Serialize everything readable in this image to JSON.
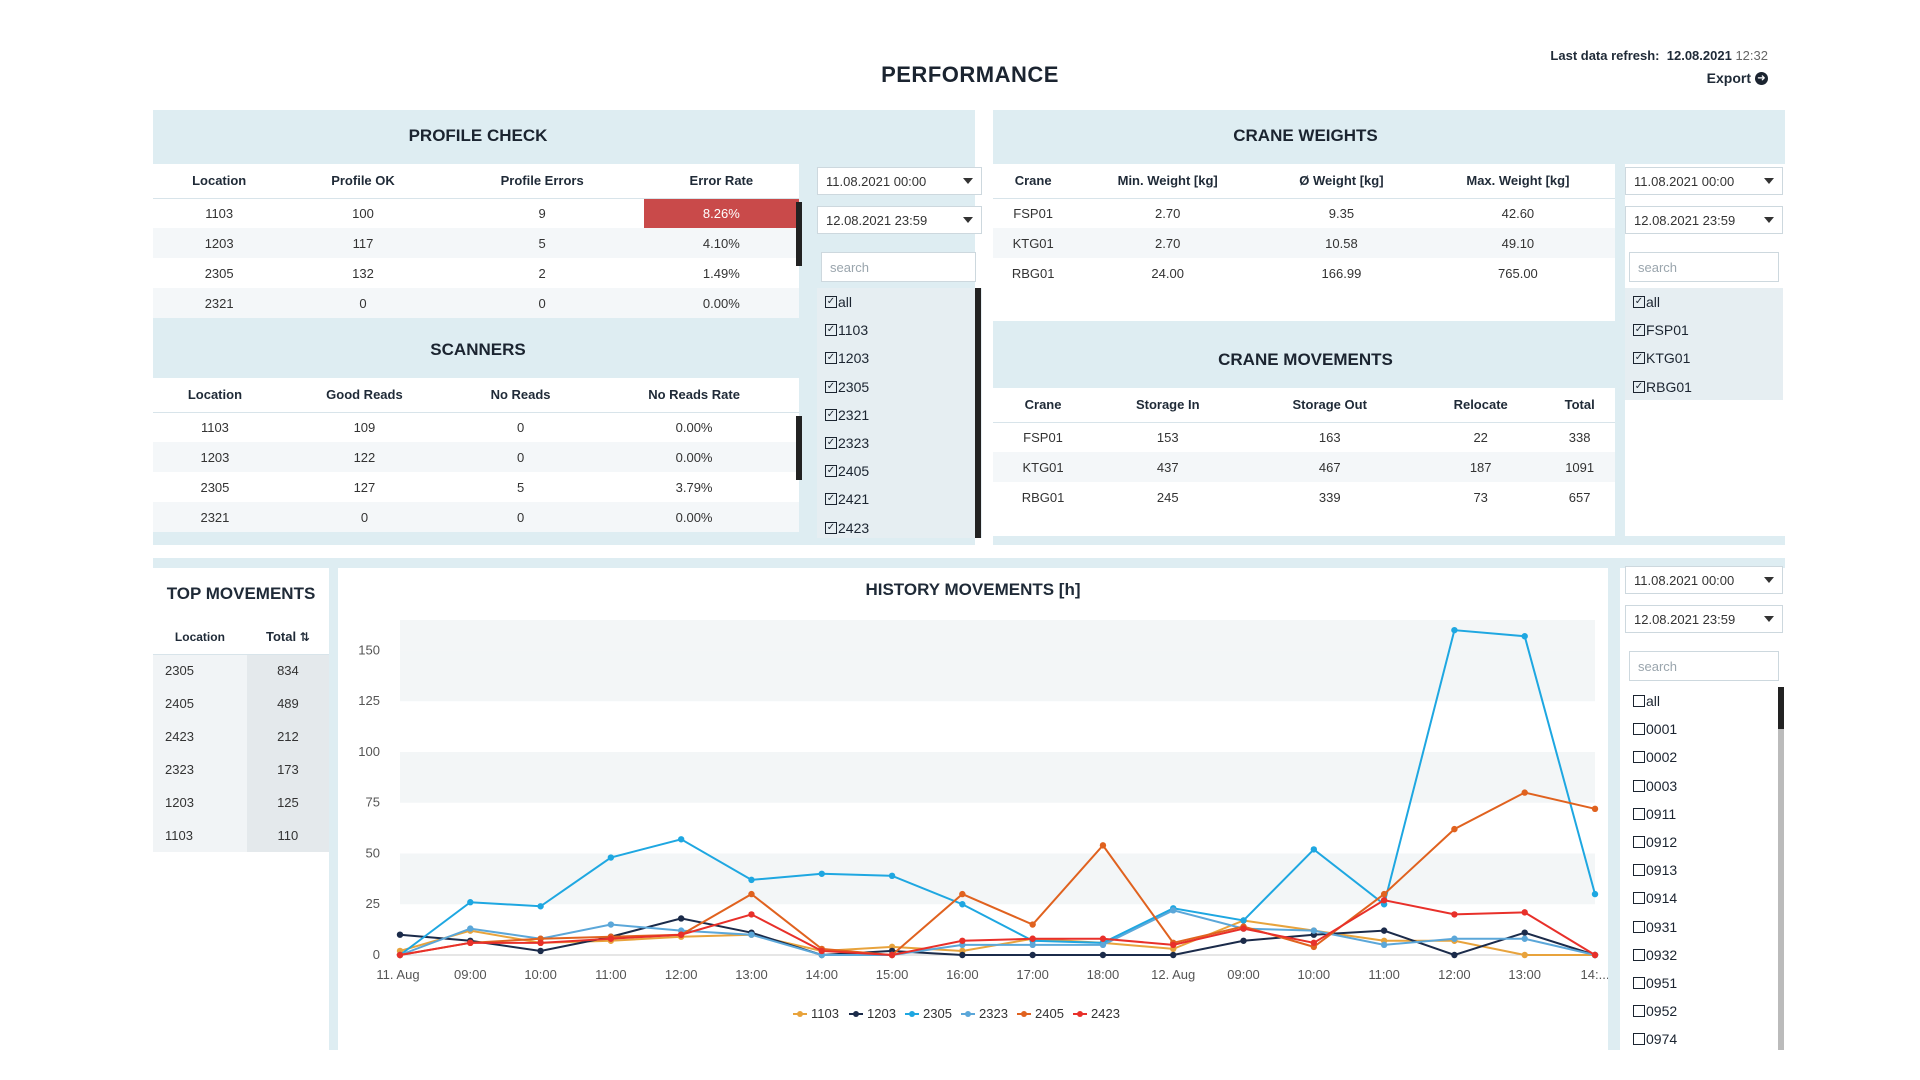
{
  "page": {
    "title": "PERFORMANCE",
    "refresh_label": "Last data refresh:",
    "refresh_date": "12.08.2021",
    "refresh_time": "12:32",
    "export_label": "Export"
  },
  "profile_check": {
    "title": "PROFILE CHECK",
    "headers": [
      "Location",
      "Profile OK",
      "Profile Errors",
      "Error Rate"
    ],
    "rows": [
      [
        "1103",
        "100",
        "9",
        "8.26%"
      ],
      [
        "1203",
        "117",
        "5",
        "4.10%"
      ],
      [
        "2305",
        "132",
        "2",
        "1.49%"
      ],
      [
        "2321",
        "0",
        "0",
        "0.00%"
      ]
    ]
  },
  "scanners": {
    "title": "SCANNERS",
    "headers": [
      "Location",
      "Good Reads",
      "No Reads",
      "No Reads Rate"
    ],
    "rows": [
      [
        "1103",
        "109",
        "0",
        "0.00%"
      ],
      [
        "1203",
        "122",
        "0",
        "0.00%"
      ],
      [
        "2305",
        "127",
        "5",
        "3.79%"
      ],
      [
        "2321",
        "0",
        "0",
        "0.00%"
      ]
    ]
  },
  "filter_left": {
    "date_from": "11.08.2021 00:00",
    "date_to": "12.08.2021 23:59",
    "search_placeholder": "search",
    "items": [
      "all",
      "1103",
      "1203",
      "2305",
      "2321",
      "2323",
      "2405",
      "2421",
      "2423"
    ]
  },
  "crane_weights": {
    "title": "CRANE WEIGHTS",
    "headers": [
      "Crane",
      "Min. Weight [kg]",
      "Ø Weight [kg]",
      "Max. Weight [kg]"
    ],
    "rows": [
      [
        "FSP01",
        "2.70",
        "9.35",
        "42.60"
      ],
      [
        "KTG01",
        "2.70",
        "10.58",
        "49.10"
      ],
      [
        "RBG01",
        "24.00",
        "166.99",
        "765.00"
      ]
    ]
  },
  "crane_movements": {
    "title": "CRANE MOVEMENTS",
    "headers": [
      "Crane",
      "Storage In",
      "Storage Out",
      "Relocate",
      "Total"
    ],
    "rows": [
      [
        "FSP01",
        "153",
        "163",
        "22",
        "338"
      ],
      [
        "KTG01",
        "437",
        "467",
        "187",
        "1091"
      ],
      [
        "RBG01",
        "245",
        "339",
        "73",
        "657"
      ]
    ]
  },
  "filter_right": {
    "date_from": "11.08.2021 00:00",
    "date_to": "12.08.2021 23:59",
    "search_placeholder": "search",
    "items": [
      "all",
      "FSP01",
      "KTG01",
      "RBG01"
    ]
  },
  "top_movements": {
    "title": "TOP MOVEMENTS",
    "headers": [
      "Location",
      "Total"
    ],
    "sort_icon": "sort-icon",
    "rows": [
      [
        "2305",
        "834"
      ],
      [
        "2405",
        "489"
      ],
      [
        "2423",
        "212"
      ],
      [
        "2323",
        "173"
      ],
      [
        "1203",
        "125"
      ],
      [
        "1103",
        "110"
      ]
    ]
  },
  "filter_bottom": {
    "date_from": "11.08.2021 00:00",
    "date_to": "12.08.2021 23:59",
    "search_placeholder": "search",
    "items": [
      "all",
      "0001",
      "0002",
      "0003",
      "0911",
      "0912",
      "0913",
      "0914",
      "0931",
      "0932",
      "0951",
      "0952",
      "0974"
    ]
  },
  "chart_data": {
    "type": "line",
    "title": "HISTORY MOVEMENTS [h]",
    "xlabel": "",
    "ylabel": "",
    "x": [
      "11. Aug",
      "09:00",
      "10:00",
      "11:00",
      "12:00",
      "13:00",
      "14:00",
      "15:00",
      "16:00",
      "17:00",
      "18:00",
      "12. Aug",
      "09:00",
      "10:00",
      "11:00",
      "12:00",
      "13:00",
      "14:..."
    ],
    "ylim": [
      0,
      165
    ],
    "yticks": [
      0,
      25,
      50,
      75,
      100,
      125,
      150
    ],
    "legend_position": "bottom",
    "grid": "horizontal bands",
    "series": [
      {
        "name": "1103",
        "color": "#e8a33c",
        "values": [
          2,
          12,
          6,
          7,
          9,
          10,
          2,
          4,
          2,
          8,
          6,
          3,
          17,
          12,
          7,
          7,
          0,
          0
        ]
      },
      {
        "name": "1203",
        "color": "#1b2b4a",
        "values": [
          10,
          7,
          2,
          9,
          18,
          11,
          0,
          2,
          0,
          0,
          0,
          0,
          7,
          10,
          12,
          0,
          11,
          0
        ]
      },
      {
        "name": "2305",
        "color": "#1ea7e1",
        "values": [
          0,
          26,
          24,
          48,
          57,
          37,
          40,
          39,
          25,
          7,
          6,
          23,
          17,
          52,
          25,
          160,
          157,
          30
        ]
      },
      {
        "name": "2323",
        "color": "#5ba7d9",
        "values": [
          0,
          13,
          8,
          15,
          12,
          10,
          0,
          0,
          5,
          5,
          5,
          22,
          13,
          12,
          5,
          8,
          8,
          0
        ]
      },
      {
        "name": "2405",
        "color": "#e0621f",
        "values": [
          0,
          6,
          8,
          9,
          10,
          30,
          3,
          0,
          30,
          15,
          54,
          6,
          14,
          4,
          30,
          62,
          80,
          72
        ]
      },
      {
        "name": "2423",
        "color": "#e8302a",
        "values": [
          0,
          6,
          6,
          8,
          10,
          20,
          2,
          0,
          7,
          8,
          8,
          5,
          13,
          6,
          27,
          20,
          21,
          0
        ]
      }
    ]
  }
}
